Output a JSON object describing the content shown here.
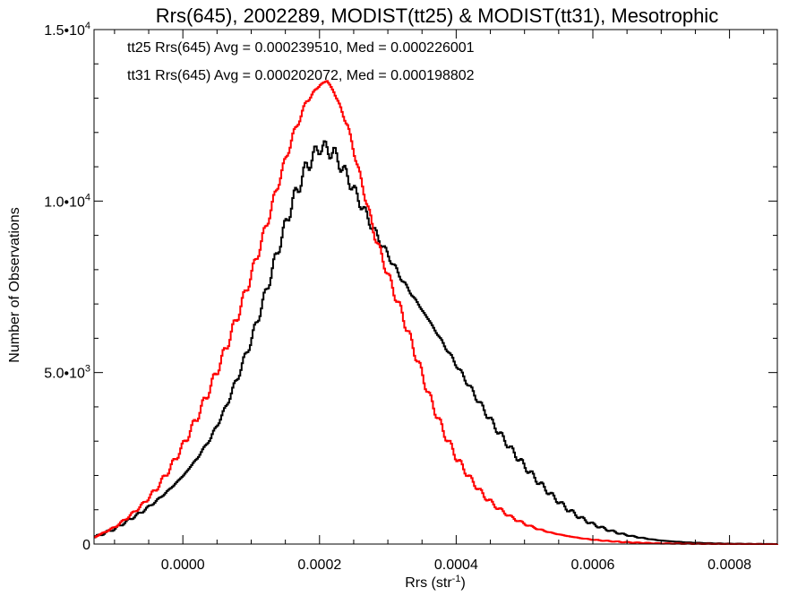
{
  "chart_data": {
    "type": "line",
    "title": "Rrs(645), 2002289, MODIST(tt25) & MODIST(tt31), Mesotrophic",
    "xlabel_main": "Rrs (str",
    "xlabel_sup": "-1",
    "xlabel_close": ")",
    "ylabel": "Number of Observations",
    "xlim": [
      -0.00013,
      0.00087
    ],
    "ylim": [
      0,
      15000
    ],
    "x_ticks": [
      {
        "value": 0.0,
        "label": "0.0000"
      },
      {
        "value": 0.0002,
        "label": "0.0002"
      },
      {
        "value": 0.0004,
        "label": "0.0004"
      },
      {
        "value": 0.0006,
        "label": "0.0006"
      },
      {
        "value": 0.0008,
        "label": "0.0008"
      }
    ],
    "y_ticks": [
      {
        "value": 0,
        "mant": "0",
        "exp": ""
      },
      {
        "value": 5000,
        "mant": "5.0•10",
        "exp": "3"
      },
      {
        "value": 10000,
        "mant": "1.0•10",
        "exp": "4"
      },
      {
        "value": 15000,
        "mant": "1.5•10",
        "exp": "4"
      }
    ],
    "grid": false,
    "series": [
      {
        "name": "tt25",
        "color": "#000000",
        "legend_text": "tt25 Rrs(645) Avg = 0.000239510, Med = 0.000226001",
        "points": [
          [
            -0.00013,
            200
          ],
          [
            -0.0001,
            450
          ],
          [
            -8e-05,
            700
          ],
          [
            -6e-05,
            950
          ],
          [
            -4e-05,
            1250
          ],
          [
            -2e-05,
            1600
          ],
          [
            0.0,
            2000
          ],
          [
            2e-05,
            2500
          ],
          [
            4e-05,
            3100
          ],
          [
            6e-05,
            3900
          ],
          [
            8e-05,
            4900
          ],
          [
            0.0001,
            6000
          ],
          [
            0.00012,
            7300
          ],
          [
            0.00014,
            8700
          ],
          [
            0.00016,
            10000
          ],
          [
            0.00018,
            11000
          ],
          [
            0.0002,
            11600
          ],
          [
            0.00022,
            11400
          ],
          [
            0.00024,
            10700
          ],
          [
            0.00026,
            9900
          ],
          [
            0.00028,
            9100
          ],
          [
            0.0003,
            8400
          ],
          [
            0.00032,
            7700
          ],
          [
            0.00034,
            7100
          ],
          [
            0.00036,
            6500
          ],
          [
            0.00038,
            5850
          ],
          [
            0.0004,
            5200
          ],
          [
            0.00042,
            4550
          ],
          [
            0.00044,
            3900
          ],
          [
            0.00046,
            3300
          ],
          [
            0.00048,
            2750
          ],
          [
            0.0005,
            2250
          ],
          [
            0.00052,
            1800
          ],
          [
            0.00054,
            1400
          ],
          [
            0.00056,
            1050
          ],
          [
            0.00058,
            780
          ],
          [
            0.0006,
            570
          ],
          [
            0.00062,
            420
          ],
          [
            0.00064,
            300
          ],
          [
            0.00066,
            215
          ],
          [
            0.00068,
            150
          ],
          [
            0.0007,
            100
          ],
          [
            0.00072,
            70
          ],
          [
            0.00074,
            45
          ],
          [
            0.00076,
            30
          ],
          [
            0.00078,
            18
          ],
          [
            0.0008,
            10
          ],
          [
            0.00082,
            6
          ],
          [
            0.00084,
            3
          ],
          [
            0.00087,
            1
          ]
        ]
      },
      {
        "name": "tt31",
        "color": "#ff0000",
        "legend_text": "tt31 Rrs(645) Avg = 0.000202072, Med = 0.000198802",
        "points": [
          [
            -0.00013,
            200
          ],
          [
            -0.0001,
            500
          ],
          [
            -8e-05,
            800
          ],
          [
            -6e-05,
            1150
          ],
          [
            -4e-05,
            1600
          ],
          [
            -2e-05,
            2200
          ],
          [
            0.0,
            2900
          ],
          [
            2e-05,
            3700
          ],
          [
            4e-05,
            4600
          ],
          [
            6e-05,
            5600
          ],
          [
            8e-05,
            6700
          ],
          [
            0.0001,
            7900
          ],
          [
            0.00012,
            9200
          ],
          [
            0.00014,
            10600
          ],
          [
            0.00016,
            11900
          ],
          [
            0.00018,
            12900
          ],
          [
            0.0002,
            13400
          ],
          [
            0.00021,
            13500
          ],
          [
            0.00022,
            13200
          ],
          [
            0.00024,
            12200
          ],
          [
            0.00026,
            10600
          ],
          [
            0.00028,
            9000
          ],
          [
            0.0003,
            7800
          ],
          [
            0.00032,
            6700
          ],
          [
            0.00034,
            5500
          ],
          [
            0.00036,
            4300
          ],
          [
            0.00038,
            3300
          ],
          [
            0.0004,
            2500
          ],
          [
            0.00042,
            1900
          ],
          [
            0.00044,
            1400
          ],
          [
            0.00046,
            1050
          ],
          [
            0.00048,
            780
          ],
          [
            0.0005,
            580
          ],
          [
            0.00052,
            430
          ],
          [
            0.00054,
            320
          ],
          [
            0.00056,
            240
          ],
          [
            0.00058,
            175
          ],
          [
            0.0006,
            125
          ],
          [
            0.00062,
            90
          ],
          [
            0.00064,
            62
          ],
          [
            0.00066,
            42
          ],
          [
            0.00068,
            28
          ],
          [
            0.0007,
            18
          ],
          [
            0.00072,
            12
          ],
          [
            0.00074,
            8
          ],
          [
            0.00076,
            5
          ],
          [
            0.00078,
            3
          ],
          [
            0.0008,
            2
          ],
          [
            0.00084,
            1
          ],
          [
            0.00087,
            0
          ]
        ]
      }
    ]
  }
}
